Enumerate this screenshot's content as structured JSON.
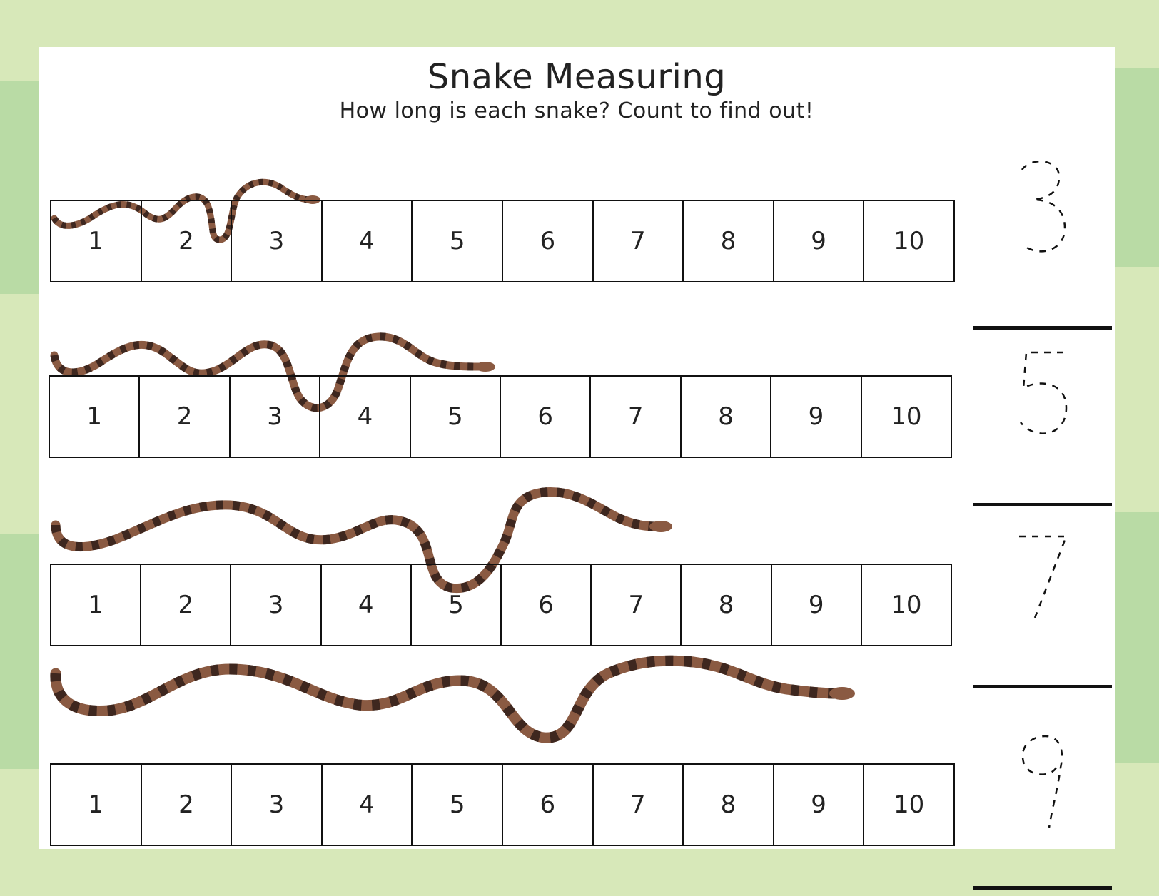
{
  "worksheet": {
    "title": "Snake Measuring",
    "subtitle": "How long is each snake? Count to find out!"
  },
  "ruler_numbers": [
    "1",
    "2",
    "3",
    "4",
    "5",
    "6",
    "7",
    "8",
    "9",
    "10"
  ],
  "rows": [
    {
      "snake_length": 3,
      "answer": "3"
    },
    {
      "snake_length": 5,
      "answer": "5"
    },
    {
      "snake_length": 7,
      "answer": "7"
    },
    {
      "snake_length": 9,
      "answer": "9"
    }
  ],
  "colors": {
    "border_green": "#d7e8b9",
    "border_green_dark": "#b9dba5",
    "snake_body": "#b07a5a",
    "snake_band": "#4a2e24"
  }
}
